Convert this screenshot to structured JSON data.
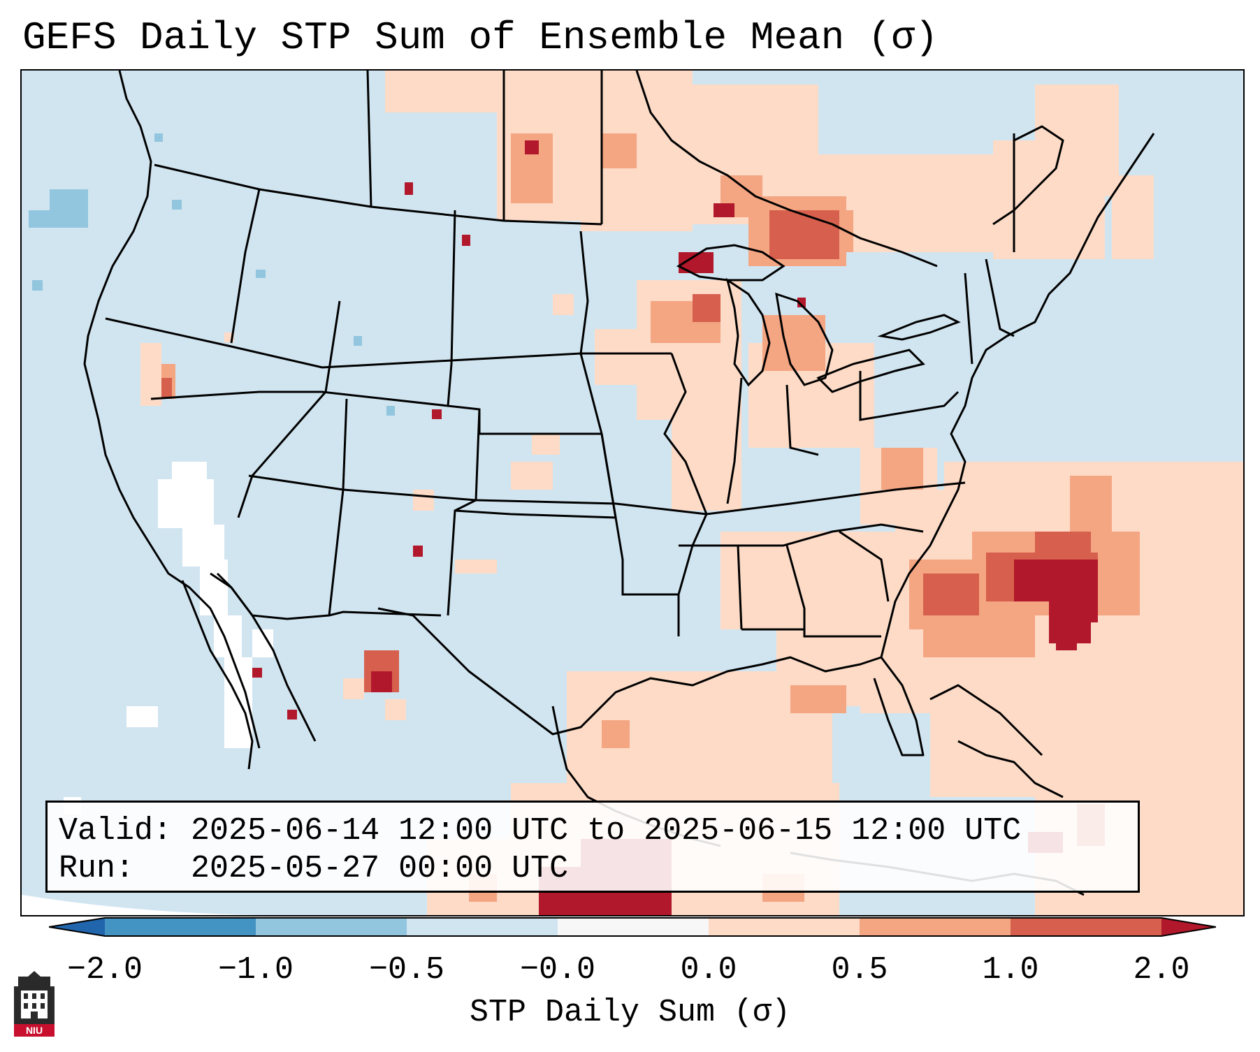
{
  "title": "GEFS Daily STP Sum of Ensemble Mean (σ)",
  "info": {
    "valid_label": "Valid:",
    "valid_value": "2025-06-14 12:00 UTC to 2025-06-15 12:00 UTC",
    "run_label": "Run:",
    "run_value": "2025-05-27 00:00 UTC"
  },
  "colorbar": {
    "label": "STP Daily Sum (σ)",
    "ticks": [
      "−2.0",
      "−1.0",
      "−0.5",
      "−0.0",
      "0.0",
      "0.5",
      "1.0",
      "2.0"
    ],
    "colors": {
      "lt_-2": "#2166ac",
      "-2_-1": "#4393c3",
      "-1_-0.5": "#92c5de",
      "-0.5_0": "#d1e5f0",
      "0_0": "#f7f7f7",
      "0_0.5": "#fddbc7",
      "0.5_1": "#f4a582",
      "1_2": "#d6604d",
      "gt_2": "#b2182b"
    }
  },
  "logo": {
    "text": "NIU",
    "icon": "niu-seal-icon"
  }
}
